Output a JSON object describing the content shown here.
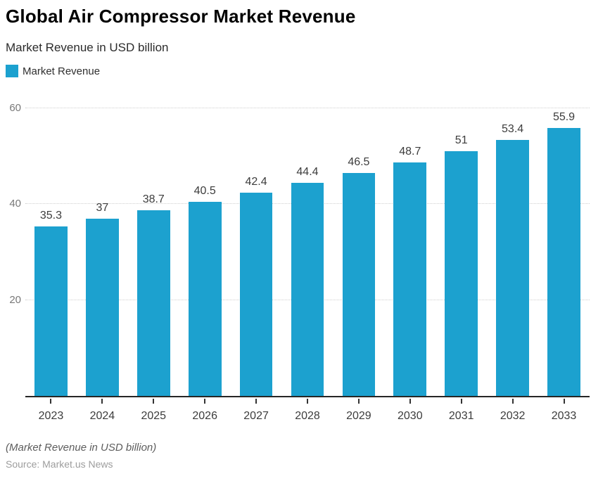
{
  "title": "Global Air Compressor Market Revenue",
  "subtitle": "Market Revenue in USD billion",
  "legend": {
    "label": "Market Revenue",
    "swatch_color": "#1CA1CF"
  },
  "footer": {
    "note": "(Market Revenue in USD billion)",
    "source": "Source: Market.us News"
  },
  "colors": {
    "bar": "#1CA1CF",
    "axis_line": "#262626",
    "gridline": "#cfcfcf",
    "y_tick_label": "#787878",
    "x_label": "#3c3c3c",
    "data_label": "#3c3c3c"
  },
  "chart_data": {
    "type": "bar",
    "categories": [
      "2023",
      "2024",
      "2025",
      "2026",
      "2027",
      "2028",
      "2029",
      "2030",
      "2031",
      "2032",
      "2033"
    ],
    "values": [
      35.3,
      37,
      38.7,
      40.5,
      42.4,
      44.4,
      46.5,
      48.7,
      51,
      53.4,
      55.9
    ],
    "series_name": "Market Revenue",
    "title": "Global Air Compressor Market Revenue",
    "subtitle": "Market Revenue in USD billion",
    "xlabel": "",
    "ylabel": "",
    "ylim": [
      0,
      60
    ],
    "yticks": [
      20,
      40,
      60
    ],
    "grid": true,
    "legend_position": "top-left",
    "data_labels": true
  }
}
